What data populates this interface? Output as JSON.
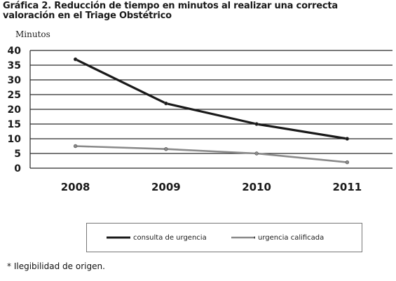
{
  "title_lines": [
    "Gráfica 2. Reducción de tiempo en minutos al realizar una correcta",
    "valoración en el Triage Obstétrico"
  ],
  "note": "* Ilegibilidad de origen.",
  "colors": {
    "series1": "#1a1a1a",
    "series2": "#8a8a8a",
    "grid": "#2a2a2a"
  },
  "chart_data": {
    "type": "line",
    "title": "Gráfica 2. Reducción de tiempo en minutos al realizar una correcta valoración en el Triage Obstétrico",
    "xlabel": "",
    "ylabel": "Minutos",
    "categories": [
      "2008",
      "2009",
      "2010",
      "2011"
    ],
    "ylim": [
      0,
      40
    ],
    "yticks": [
      "0",
      "5",
      "10",
      "15",
      "20",
      "25",
      "30",
      "35",
      "40"
    ],
    "grid": true,
    "legend_position": "bottom",
    "series": [
      {
        "name": "consulta de urgencia",
        "values": [
          37,
          22,
          15,
          10
        ]
      },
      {
        "name": "urgencia calificada",
        "values": [
          7.5,
          6.5,
          5,
          2
        ]
      }
    ]
  }
}
